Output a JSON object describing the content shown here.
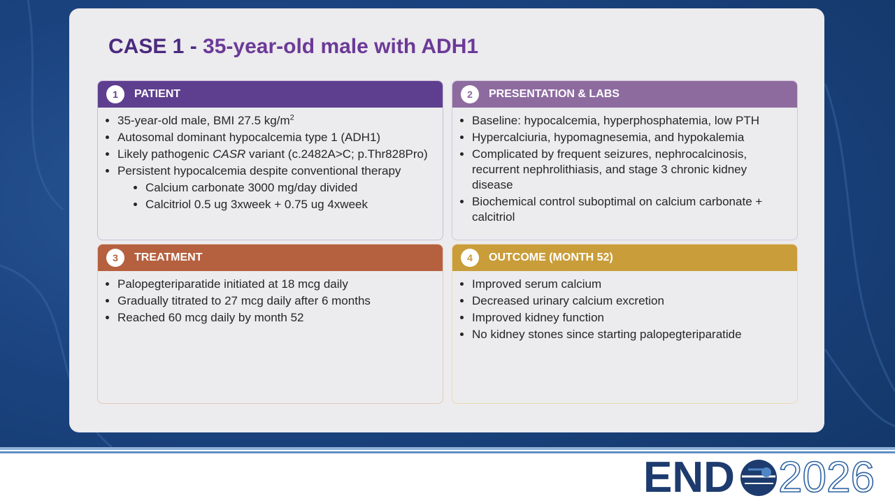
{
  "title": {
    "case": "CASE 1 -",
    "text": "35-year-old male with ADH1"
  },
  "panels": [
    {
      "number": "1",
      "heading": "PATIENT",
      "color": "#5e3f8f",
      "border": "#c8bedb",
      "items": [
        {
          "runs": [
            {
              "text": "35-year-old male, BMI 27.5 kg/m"
            },
            {
              "text": "2",
              "style": "sup"
            }
          ]
        },
        {
          "runs": [
            {
              "text": "Autosomal dominant hypocalcemia type 1 (ADH1)"
            }
          ]
        },
        {
          "runs": [
            {
              "text": "Likely pathogenic "
            },
            {
              "text": "CASR",
              "style": "italic"
            },
            {
              "text": " variant (c.2482A>C; p.Thr828Pro)"
            }
          ]
        },
        {
          "runs": [
            {
              "text": "Persistent hypocalcemia despite conventional therapy"
            }
          ]
        },
        {
          "level": 2,
          "runs": [
            {
              "text": "Calcium carbonate 3000 mg/day divided"
            }
          ]
        },
        {
          "level": 2,
          "runs": [
            {
              "text": "Calcitriol 0.5 ug 3xweek + 0.75 ug 4xweek"
            }
          ]
        }
      ]
    },
    {
      "number": "2",
      "heading": "PRESENTATION & LABS",
      "color": "#8d6b9f",
      "border": "#d3c6dc",
      "items": [
        {
          "runs": [
            {
              "text": "Baseline: hypocalcemia, hyperphosphatemia, low PTH"
            }
          ]
        },
        {
          "runs": [
            {
              "text": "Hypercalciuria, hypomagnesemia, and hypokalemia"
            }
          ]
        },
        {
          "runs": [
            {
              "text": "Complicated by frequent seizures, nephrocalcinosis, recurrent nephrolithiasis, and stage 3 chronic kidney disease"
            }
          ]
        },
        {
          "runs": [
            {
              "text": "Biochemical control suboptimal on calcium carbonate + calcitriol"
            }
          ]
        }
      ]
    },
    {
      "number": "3",
      "heading": "TREATMENT",
      "color": "#b5603f",
      "border": "#e3c9bd",
      "items": [
        {
          "runs": [
            {
              "text": "Palopegteriparatide initiated at 18 mcg daily"
            }
          ]
        },
        {
          "runs": [
            {
              "text": "Gradually titrated to 27 mcg daily after 6 months"
            }
          ]
        },
        {
          "runs": [
            {
              "text": "Reached 60 mcg daily by month 52"
            }
          ]
        }
      ]
    },
    {
      "number": "4",
      "heading": "OUTCOME (MONTH 52)",
      "color": "#c99d3a",
      "border": "#eadbb5",
      "items": [
        {
          "runs": [
            {
              "text": "Improved serum calcium"
            }
          ]
        },
        {
          "runs": [
            {
              "text": "Decreased urinary calcium excretion"
            }
          ]
        },
        {
          "runs": [
            {
              "text": "Improved kidney function"
            }
          ]
        },
        {
          "runs": [
            {
              "text": "No kidney stones since starting palopegteriparatide"
            }
          ]
        }
      ]
    }
  ],
  "logo": {
    "word": "END",
    "year": "2026"
  }
}
